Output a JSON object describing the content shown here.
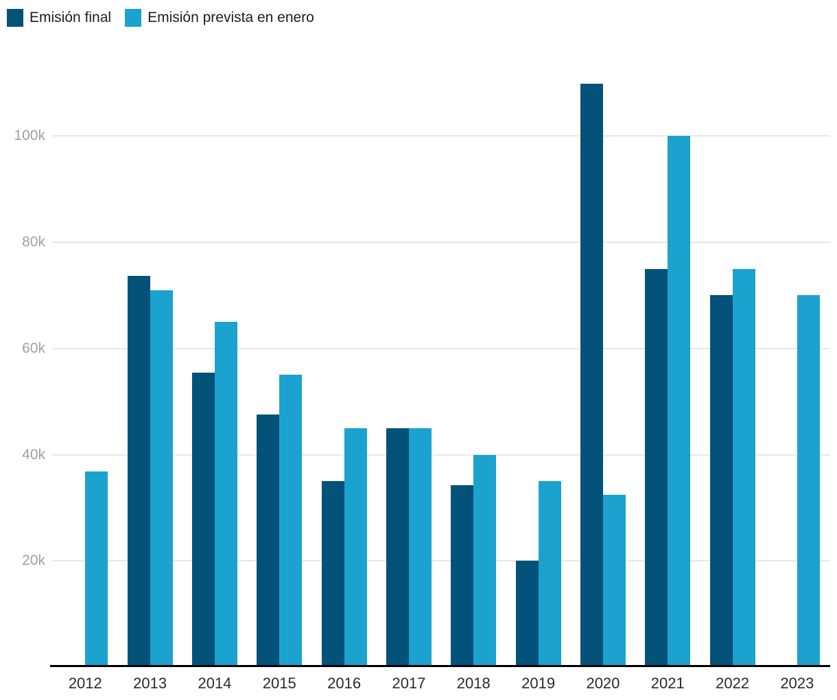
{
  "legend": {
    "items": [
      {
        "id": "final",
        "label": "Emisión final",
        "color": "#02527A"
      },
      {
        "id": "prevista",
        "label": "Emisión prevista en enero",
        "color": "#1CA2CF"
      }
    ]
  },
  "chart_data": {
    "type": "bar",
    "title": "",
    "xlabel": "",
    "ylabel": "",
    "categories": [
      "2012",
      "2013",
      "2014",
      "2015",
      "2016",
      "2017",
      "2018",
      "2019",
      "2020",
      "2021",
      "2022",
      "2023"
    ],
    "series": [
      {
        "name": "Emisión final",
        "color": "#02527A",
        "values": [
          null,
          73700,
          55500,
          47500,
          35000,
          45000,
          34300,
          20000,
          109900,
          75000,
          70000,
          null
        ]
      },
      {
        "name": "Emisión prevista en enero",
        "color": "#1CA2CF",
        "values": [
          36800,
          71000,
          65000,
          55000,
          45000,
          45000,
          40000,
          35000,
          32500,
          100000,
          75000,
          70000
        ]
      }
    ],
    "ylim": [
      0,
      115000
    ],
    "yticks": [
      {
        "value": 20000,
        "label": "20k"
      },
      {
        "value": 40000,
        "label": "40k"
      },
      {
        "value": 60000,
        "label": "60k"
      },
      {
        "value": 80000,
        "label": "80k"
      },
      {
        "value": 100000,
        "label": "100k"
      }
    ],
    "grid": true,
    "legend_position": "top-left"
  },
  "colors": {
    "background": "#ffffff",
    "grid": "#e8e8e8",
    "axis": "#000000",
    "ytick_text": "#a0a0a0",
    "xtick_text": "#2a2a2a",
    "legend_text": "#1d1d1d"
  }
}
